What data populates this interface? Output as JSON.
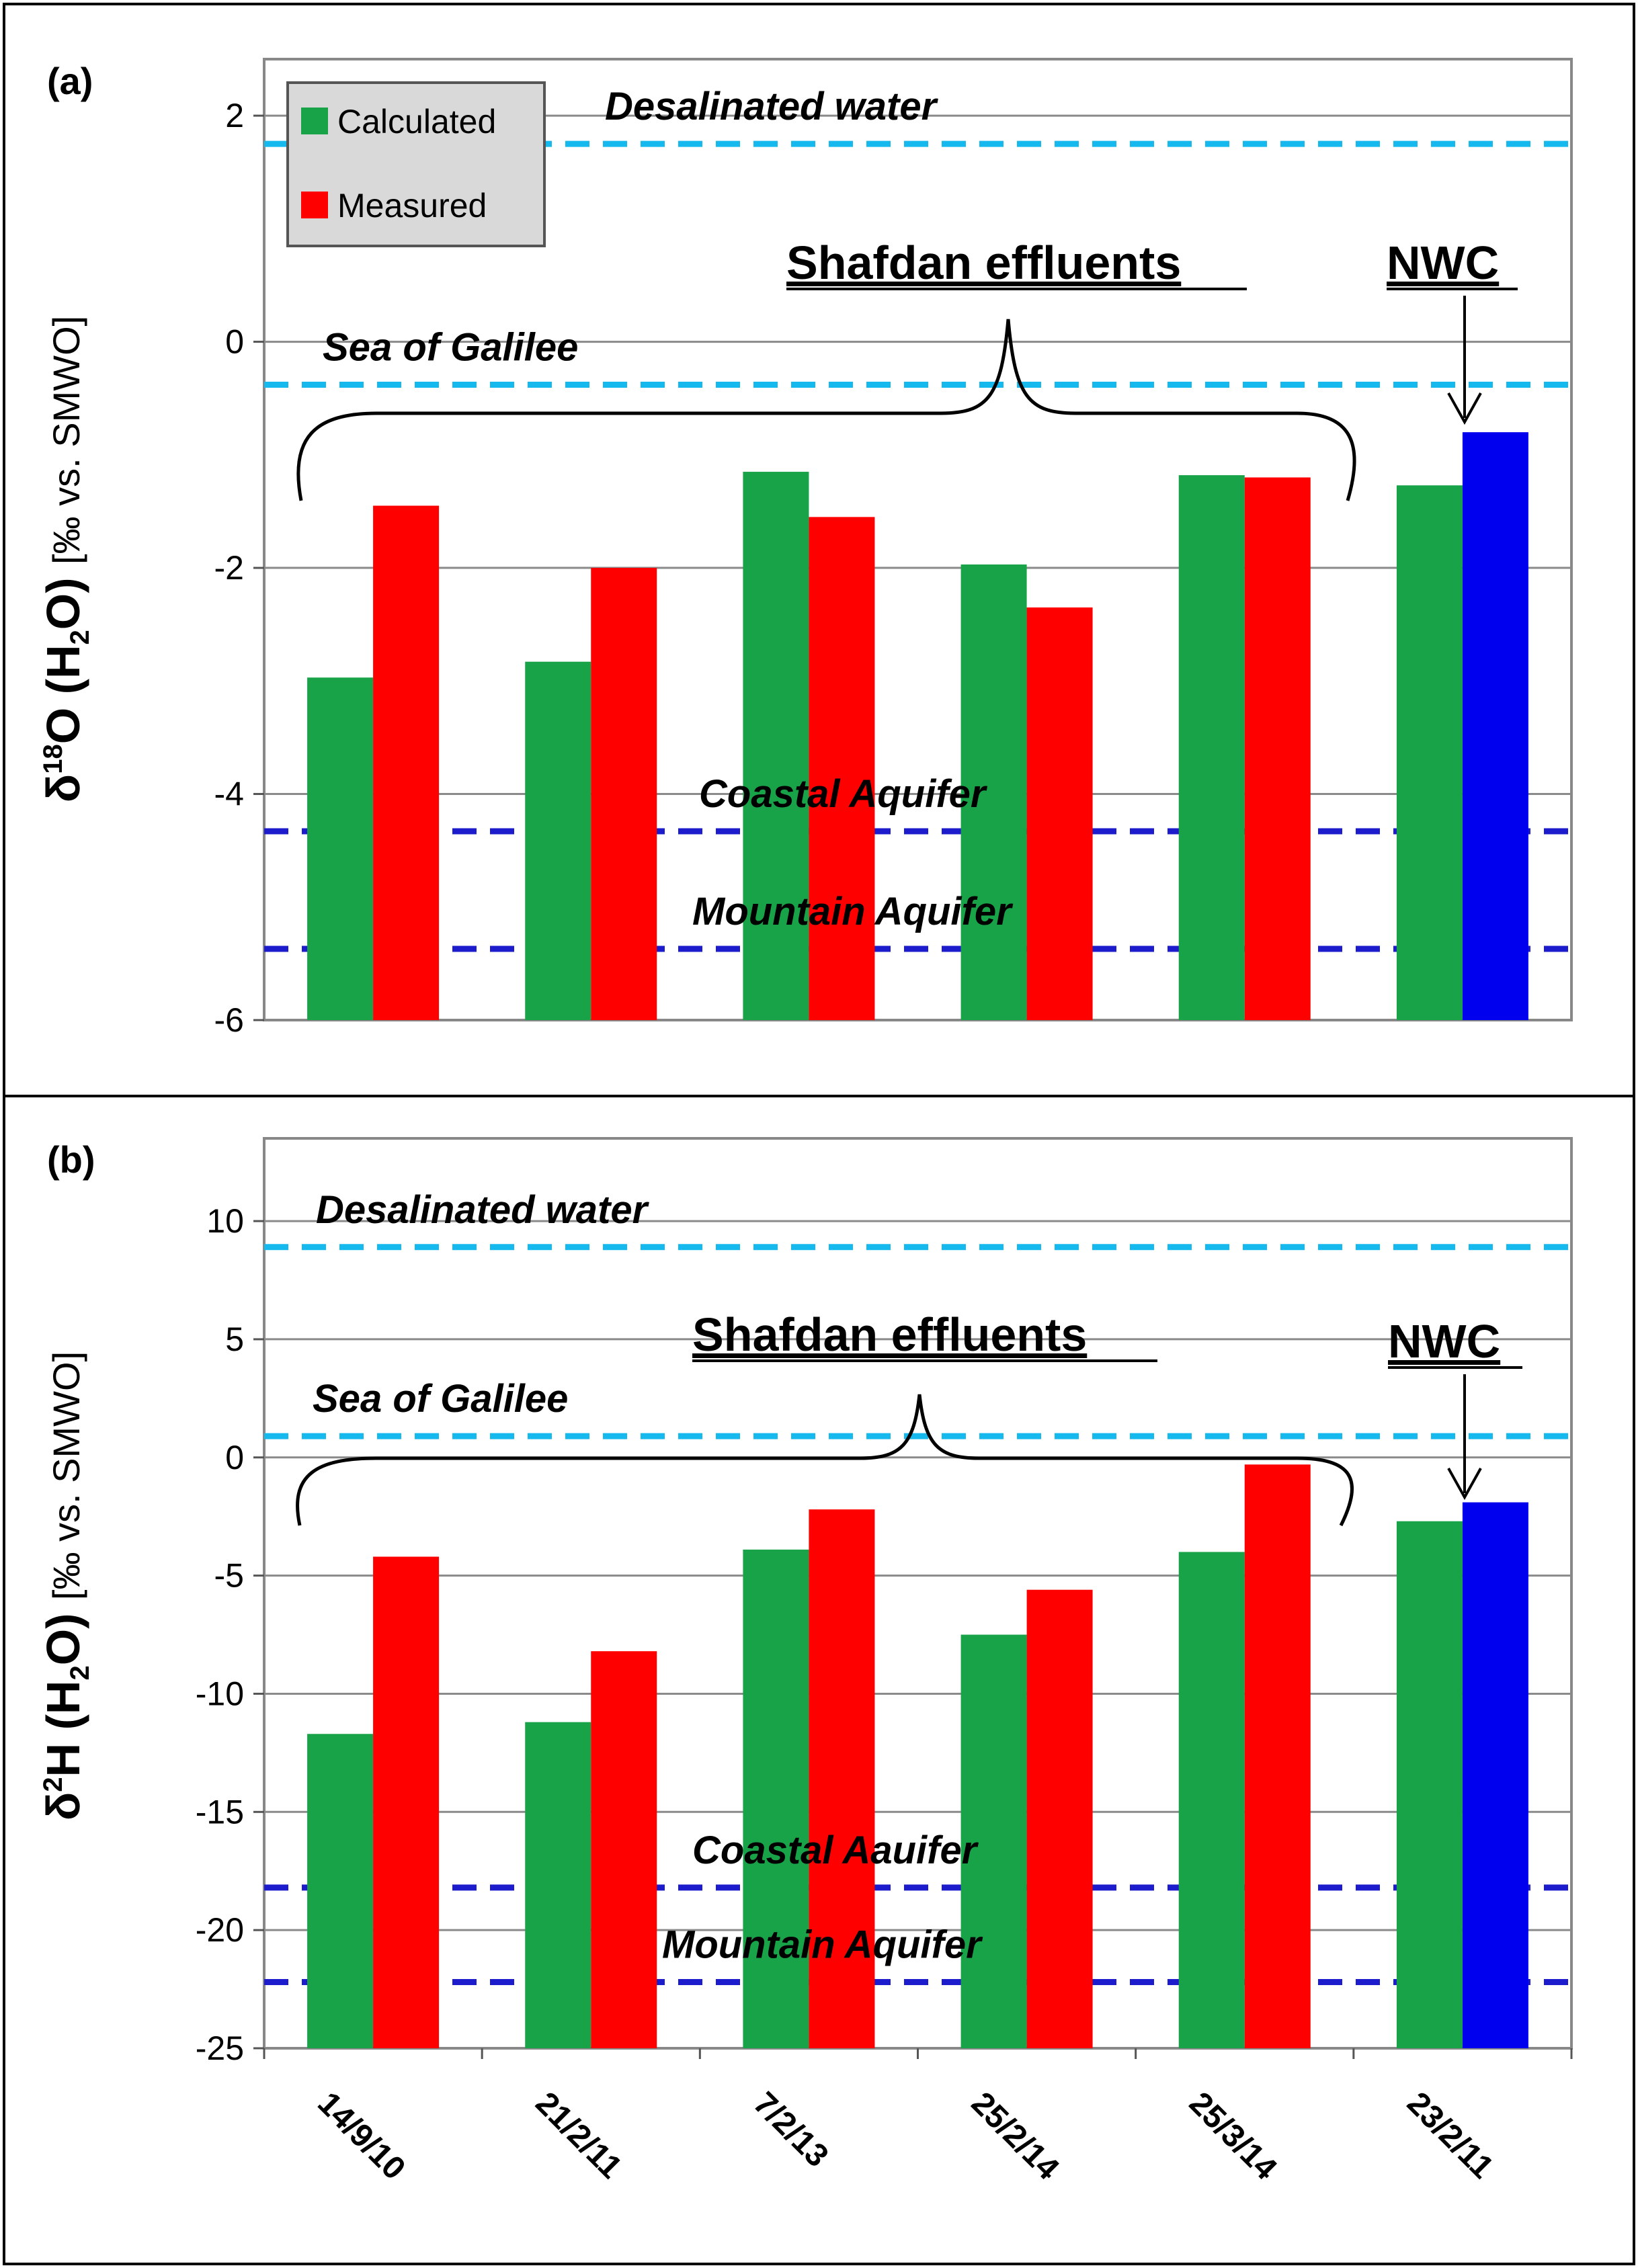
{
  "chart_data": [
    {
      "id": "a",
      "type": "bar",
      "panel_label": "(a)",
      "ylabel_main": "δ18O (H2O)",
      "ylabel_unit": "[‰ vs. SMWO]",
      "ylim": [
        -6,
        2.5
      ],
      "yticks": [
        2,
        0,
        -2,
        -4,
        -6
      ],
      "grid": true,
      "categories": [
        "14/9/10",
        "21/2/11",
        "7/2/13",
        "25/2/14",
        "25/3/14",
        "23/2/11"
      ],
      "series": [
        {
          "name": "Calculated",
          "color": "#18a348",
          "values": [
            -2.97,
            -2.83,
            -1.15,
            -1.97,
            -1.18,
            -1.27
          ]
        },
        {
          "name": "Measured",
          "color": "#ff0000",
          "values": [
            -1.45,
            -2.0,
            -1.55,
            -2.35,
            -1.2,
            null
          ]
        },
        {
          "name": "NWC",
          "color": "#0000ee",
          "values": [
            null,
            null,
            null,
            null,
            null,
            -0.8
          ]
        }
      ],
      "reference_lines": [
        {
          "label": "Desalinated water",
          "value": 1.75,
          "color": "#16b9ee"
        },
        {
          "label": "Sea of Galilee",
          "value": -0.38,
          "color": "#16b9ee"
        },
        {
          "label": "Coastal Aquifer",
          "value": -4.33,
          "color": "#1c1ccc"
        },
        {
          "label": "Mountain Aquifer",
          "value": -5.37,
          "color": "#1c1ccc"
        }
      ],
      "group_annotation": "Shafdan effluents",
      "nwc_annotation": "NWC",
      "legend": [
        {
          "label": "Calculated",
          "color": "#18a348"
        },
        {
          "label": "Measured",
          "color": "#ff0000"
        }
      ],
      "legend_position": "top-left"
    },
    {
      "id": "b",
      "type": "bar",
      "panel_label": "(b)",
      "ylabel_main": "δ2H (H2O)",
      "ylabel_unit": "[‰ vs. SMWO]",
      "ylim": [
        -25,
        13.5
      ],
      "yticks": [
        10,
        5,
        0,
        -5,
        -10,
        -15,
        -20,
        -25
      ],
      "grid": true,
      "categories": [
        "14/9/10",
        "21/2/11",
        "7/2/13",
        "25/2/14",
        "25/3/14",
        "23/2/11"
      ],
      "series": [
        {
          "name": "Calculated",
          "color": "#18a348",
          "values": [
            -11.7,
            -11.2,
            -3.9,
            -7.5,
            -4.0,
            -2.7
          ]
        },
        {
          "name": "Measured",
          "color": "#ff0000",
          "values": [
            -4.2,
            -8.2,
            -2.2,
            -5.6,
            -0.3,
            null
          ]
        },
        {
          "name": "NWC",
          "color": "#0000ee",
          "values": [
            null,
            null,
            null,
            null,
            null,
            -1.9
          ]
        }
      ],
      "reference_lines": [
        {
          "label": "Desalinated water",
          "value": 8.9,
          "color": "#16b9ee"
        },
        {
          "label": "Sea of Galilee",
          "value": 0.9,
          "color": "#16b9ee"
        },
        {
          "label": "Coastal Aauifer",
          "value": -18.2,
          "color": "#1c1ccc"
        },
        {
          "label": "Mountain Aquifer",
          "value": -22.2,
          "color": "#1c1ccc"
        }
      ],
      "group_annotation": "Shafdan effluents",
      "nwc_annotation": "NWC"
    }
  ]
}
